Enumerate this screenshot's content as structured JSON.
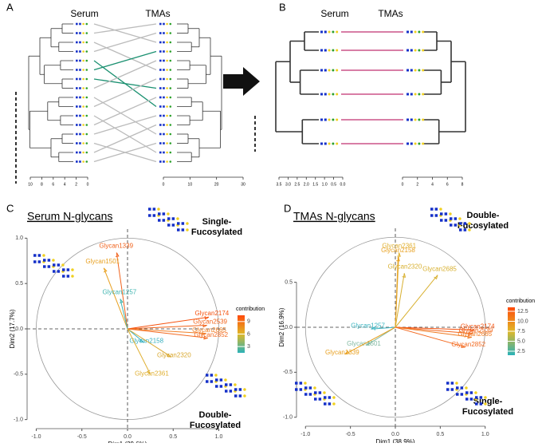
{
  "panels": {
    "A": {
      "letter": "A",
      "left_label": "Serum",
      "right_label": "TMAs",
      "left_axis": [
        "10",
        "8",
        "6",
        "4",
        "2",
        "0"
      ],
      "right_axis": [
        "0",
        "10",
        "20",
        "30"
      ]
    },
    "B": {
      "letter": "B",
      "left_label": "Serum",
      "right_label": "TMAs",
      "left_axis": [
        "3.5",
        "3.0",
        "2.5",
        "2.0",
        "1.5",
        "1.0",
        "0.5",
        "0.0"
      ],
      "right_axis": [
        "0",
        "2",
        "4",
        "6",
        "8"
      ]
    }
  },
  "chart_data": [
    {
      "type": "biplot",
      "panel": "C",
      "title": "Serum N-glycans",
      "xlabel": "Dim1 (39.6%)",
      "ylabel": "Dim2 (17.7%)",
      "xlim": [
        -1.1,
        1.1
      ],
      "ylim": [
        -1.1,
        1.1
      ],
      "xticks": [
        {
          "value": -1,
          "label": "-1.0"
        },
        {
          "value": -0.5,
          "label": "-0.5"
        },
        {
          "value": 0,
          "label": "0.0"
        },
        {
          "value": 0.5,
          "label": "0.5"
        },
        {
          "value": 1,
          "label": "1.0"
        }
      ],
      "yticks": [
        {
          "value": -1,
          "label": "-1.0"
        },
        {
          "value": -0.5,
          "label": "-0.5"
        },
        {
          "value": 0,
          "label": "0.0"
        },
        {
          "value": 0.5,
          "label": "0.5"
        },
        {
          "value": 1,
          "label": "1.0"
        }
      ],
      "variables": [
        {
          "name": "Glycan1339",
          "x": -0.12,
          "y": 0.84,
          "color": "#f0621c"
        },
        {
          "name": "Glycan1501",
          "x": -0.26,
          "y": 0.67,
          "color": "#e8a020"
        },
        {
          "name": "Glycan1257",
          "x": -0.08,
          "y": 0.33,
          "color": "#3fb4b0"
        },
        {
          "name": "Glycan2174",
          "x": 0.89,
          "y": 0.13,
          "color": "#f5520f"
        },
        {
          "name": "Glycan2539",
          "x": 0.87,
          "y": 0.04,
          "color": "#f2641a"
        },
        {
          "name": "Glycan2665",
          "x": 0.86,
          "y": -0.05,
          "color": "#f08028"
        },
        {
          "name": "Glycan2852",
          "x": 0.88,
          "y": -0.1,
          "color": "#f36a20"
        },
        {
          "name": "Glycan2158",
          "x": 0.18,
          "y": -0.15,
          "color": "#38b0c0"
        },
        {
          "name": "Glycan2320",
          "x": 0.48,
          "y": -0.31,
          "color": "#d9a830"
        },
        {
          "name": "Glycan2361",
          "x": 0.25,
          "y": -0.5,
          "color": "#dfae2e"
        }
      ],
      "colorbar": {
        "label": "contribution",
        "colors": [
          "#2ab2b8",
          "#e0b828",
          "#ff4a0a"
        ],
        "clim": [
          1.5,
          10.5
        ],
        "ticks": [
          3,
          6,
          9
        ]
      },
      "annotations": [
        [
          "Single-",
          "Fucosylated"
        ],
        [
          "Double-",
          "Fucosylated"
        ]
      ]
    },
    {
      "type": "biplot",
      "panel": "D",
      "title": "TMAs N-glycans",
      "xlabel": "Dim1 (38.9%)",
      "ylabel": "Dim2 (16.9%)",
      "xlim": [
        -1.1,
        1.1
      ],
      "ylim": [
        -1.1,
        1.1
      ],
      "xticks": [
        {
          "value": -1,
          "label": "-1.0"
        },
        {
          "value": -0.5,
          "label": "-0.5"
        },
        {
          "value": 0,
          "label": "0.0"
        },
        {
          "value": 0.5,
          "label": "0.5"
        },
        {
          "value": 1,
          "label": "1.0"
        }
      ],
      "yticks": [
        {
          "value": -1,
          "label": "-1.0"
        },
        {
          "value": -0.5,
          "label": "-0.5"
        },
        {
          "value": 0,
          "label": "0.0"
        },
        {
          "value": 0.5,
          "label": "0.5"
        }
      ],
      "variables": [
        {
          "name": "Glycan2361",
          "x": 0.04,
          "y": 0.83,
          "color": "#e0b030"
        },
        {
          "name": "Glycan2158",
          "x": 0.03,
          "y": 0.78,
          "color": "#e8a020"
        },
        {
          "name": "Glycan2320",
          "x": 0.1,
          "y": 0.6,
          "color": "#d8b030"
        },
        {
          "name": "Glycan2685",
          "x": 0.47,
          "y": 0.58,
          "color": "#d8b030"
        },
        {
          "name": "Glycan1257",
          "x": -0.27,
          "y": -0.02,
          "color": "#3ab4c0"
        },
        {
          "name": "Glycan1501",
          "x": -0.32,
          "y": -0.2,
          "color": "#80b8a0"
        },
        {
          "name": "Glycan1339",
          "x": -0.56,
          "y": -0.3,
          "color": "#e8a020"
        },
        {
          "name": "Glycan2174",
          "x": 0.88,
          "y": -0.03,
          "color": "#f5520f"
        },
        {
          "name": "Glycan2539",
          "x": 0.86,
          "y": -0.07,
          "color": "#f2641a"
        },
        {
          "name": "Glycan2665",
          "x": 0.85,
          "y": -0.11,
          "color": "#f07a20"
        },
        {
          "name": "Glycan2852",
          "x": 0.78,
          "y": -0.22,
          "color": "#f36a20"
        }
      ],
      "colorbar": {
        "label": "contribution",
        "colors": [
          "#2ab2b8",
          "#e0b828",
          "#ff4a0a"
        ],
        "clim": [
          1.5,
          13.5
        ],
        "ticks": [
          2.5,
          {
            "value": 5,
            "label": "5.0"
          },
          7.5,
          {
            "value": 10,
            "label": "10.0"
          },
          12.5
        ]
      },
      "annotations": [
        [
          "Double-",
          "Fucosylated"
        ],
        [
          "Single-",
          "Fucosylated"
        ]
      ]
    }
  ]
}
